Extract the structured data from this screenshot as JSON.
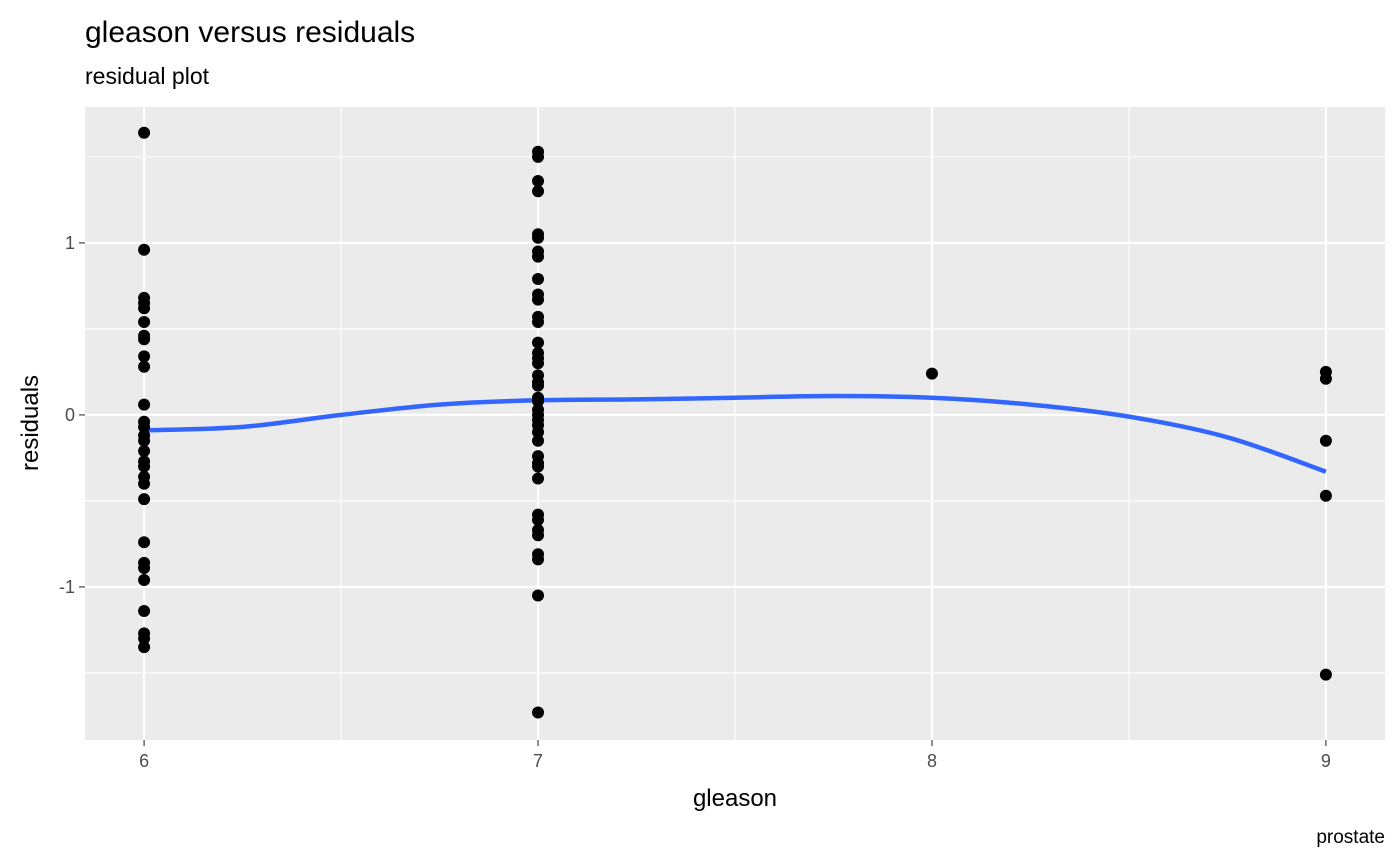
{
  "chart_data": {
    "type": "scatter",
    "title": "gleason versus residuals",
    "subtitle": "residual plot",
    "caption": "prostate",
    "xlabel": "gleason",
    "ylabel": "residuals",
    "xlim": [
      5.85,
      9.15
    ],
    "ylim": [
      -1.89,
      1.79
    ],
    "x_ticks": [
      6,
      7,
      8,
      9
    ],
    "y_ticks": [
      -1,
      0,
      1
    ],
    "x_tick_labels": [
      "6",
      "7",
      "8",
      "9"
    ],
    "y_tick_labels": [
      "-1",
      "0",
      "1"
    ],
    "grid": true,
    "legend": "none",
    "colors": {
      "panel": "#EBEBEB",
      "grid_major": "#FFFFFF",
      "points": "#000000",
      "smooth": "#3366FF"
    },
    "series": [
      {
        "type": "points",
        "points": [
          {
            "x": 6,
            "y": 1.64
          },
          {
            "x": 6,
            "y": 0.96
          },
          {
            "x": 6,
            "y": 0.68
          },
          {
            "x": 6,
            "y": 0.65
          },
          {
            "x": 6,
            "y": 0.62
          },
          {
            "x": 6,
            "y": 0.54
          },
          {
            "x": 6,
            "y": 0.46
          },
          {
            "x": 6,
            "y": 0.44
          },
          {
            "x": 6,
            "y": 0.34
          },
          {
            "x": 6,
            "y": 0.28
          },
          {
            "x": 6,
            "y": 0.06
          },
          {
            "x": 6,
            "y": -0.04
          },
          {
            "x": 6,
            "y": -0.07
          },
          {
            "x": 6,
            "y": -0.12
          },
          {
            "x": 6,
            "y": -0.15
          },
          {
            "x": 6,
            "y": -0.21
          },
          {
            "x": 6,
            "y": -0.27
          },
          {
            "x": 6,
            "y": -0.3
          },
          {
            "x": 6,
            "y": -0.36
          },
          {
            "x": 6,
            "y": -0.4
          },
          {
            "x": 6,
            "y": -0.49
          },
          {
            "x": 6,
            "y": -0.74
          },
          {
            "x": 6,
            "y": -0.86
          },
          {
            "x": 6,
            "y": -0.89
          },
          {
            "x": 6,
            "y": -0.96
          },
          {
            "x": 6,
            "y": -1.14
          },
          {
            "x": 6,
            "y": -1.27
          },
          {
            "x": 6,
            "y": -1.3
          },
          {
            "x": 6,
            "y": -1.35
          },
          {
            "x": 7,
            "y": 1.53
          },
          {
            "x": 7,
            "y": 1.5
          },
          {
            "x": 7,
            "y": 1.36
          },
          {
            "x": 7,
            "y": 1.3
          },
          {
            "x": 7,
            "y": 1.05
          },
          {
            "x": 7,
            "y": 1.03
          },
          {
            "x": 7,
            "y": 0.95
          },
          {
            "x": 7,
            "y": 0.92
          },
          {
            "x": 7,
            "y": 0.79
          },
          {
            "x": 7,
            "y": 0.7
          },
          {
            "x": 7,
            "y": 0.67
          },
          {
            "x": 7,
            "y": 0.57
          },
          {
            "x": 7,
            "y": 0.54
          },
          {
            "x": 7,
            "y": 0.42
          },
          {
            "x": 7,
            "y": 0.36
          },
          {
            "x": 7,
            "y": 0.33
          },
          {
            "x": 7,
            "y": 0.3
          },
          {
            "x": 7,
            "y": 0.23
          },
          {
            "x": 7,
            "y": 0.19
          },
          {
            "x": 7,
            "y": 0.17
          },
          {
            "x": 7,
            "y": 0.1
          },
          {
            "x": 7,
            "y": 0.08
          },
          {
            "x": 7,
            "y": 0.03
          },
          {
            "x": 7,
            "y": 0.0
          },
          {
            "x": 7,
            "y": -0.03
          },
          {
            "x": 7,
            "y": -0.06
          },
          {
            "x": 7,
            "y": -0.1
          },
          {
            "x": 7,
            "y": -0.15
          },
          {
            "x": 7,
            "y": -0.24
          },
          {
            "x": 7,
            "y": -0.28
          },
          {
            "x": 7,
            "y": -0.3
          },
          {
            "x": 7,
            "y": -0.37
          },
          {
            "x": 7,
            "y": -0.58
          },
          {
            "x": 7,
            "y": -0.61
          },
          {
            "x": 7,
            "y": -0.67
          },
          {
            "x": 7,
            "y": -0.7
          },
          {
            "x": 7,
            "y": -0.81
          },
          {
            "x": 7,
            "y": -0.84
          },
          {
            "x": 7,
            "y": -1.05
          },
          {
            "x": 7,
            "y": -1.73
          },
          {
            "x": 8,
            "y": 0.24
          },
          {
            "x": 9,
            "y": 0.25
          },
          {
            "x": 9,
            "y": 0.21
          },
          {
            "x": 9,
            "y": -0.15
          },
          {
            "x": 9,
            "y": -0.47
          },
          {
            "x": 9,
            "y": -1.51
          }
        ]
      },
      {
        "type": "smooth",
        "points": [
          {
            "x": 6.0,
            "y": -0.09
          },
          {
            "x": 6.25,
            "y": -0.07
          },
          {
            "x": 6.5,
            "y": 0.0
          },
          {
            "x": 6.75,
            "y": 0.06
          },
          {
            "x": 7.0,
            "y": 0.085
          },
          {
            "x": 7.25,
            "y": 0.09
          },
          {
            "x": 7.5,
            "y": 0.1
          },
          {
            "x": 7.75,
            "y": 0.11
          },
          {
            "x": 8.0,
            "y": 0.1
          },
          {
            "x": 8.25,
            "y": 0.06
          },
          {
            "x": 8.5,
            "y": -0.01
          },
          {
            "x": 8.75,
            "y": -0.13
          },
          {
            "x": 9.0,
            "y": -0.33
          }
        ]
      }
    ]
  }
}
